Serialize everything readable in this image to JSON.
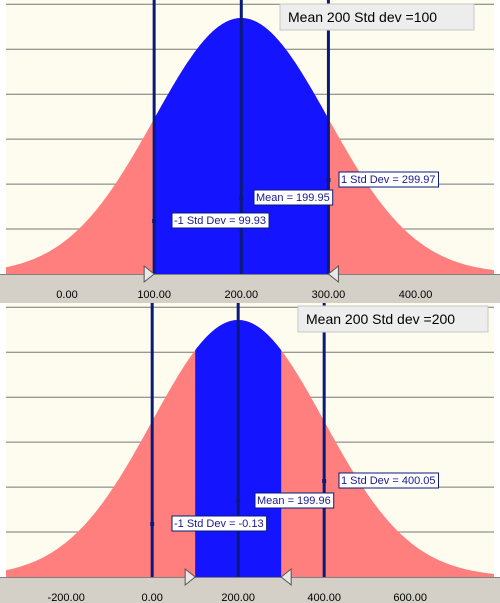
{
  "colors": {
    "plot_bg": "#fdfcef",
    "axis_strip": "#d4d0c8",
    "outer_fill": "#ff7f7f",
    "inner_fill": "#1414ff",
    "marker_line": "#0a1a7a",
    "grid": "#777777",
    "label_text": "#1a1a8c"
  },
  "chart_data": [
    {
      "type": "area",
      "title": "Mean 200 Std dev =100",
      "mean": 200,
      "std_dev": 100,
      "xlim": [
        -70,
        490
      ],
      "x_ticks": [
        "0.00",
        "100.00",
        "200.00",
        "300.00",
        "400.00"
      ],
      "x_tick_values": [
        0,
        100,
        200,
        300,
        400
      ],
      "shaded_range": [
        100,
        300
      ],
      "markers": [
        {
          "x": 100,
          "label": "-1 Std Dev = 99.93"
        },
        {
          "x": 200,
          "label": "Mean = 199.95"
        },
        {
          "x": 300,
          "label": "1 Std Dev = 299.97"
        }
      ],
      "range_handles": [
        100,
        300
      ],
      "grid_lines": 6
    },
    {
      "type": "area",
      "title": "Mean 200 Std dev =200",
      "mean": 200,
      "std_dev": 200,
      "xlim": [
        -340,
        795
      ],
      "x_ticks": [
        "-200.00",
        "0.00",
        "200.00",
        "400.00",
        "600.00"
      ],
      "x_tick_values": [
        -200,
        0,
        200,
        400,
        600
      ],
      "shaded_range": [
        100,
        300
      ],
      "markers": [
        {
          "x": 0,
          "label": "-1 Std Dev = -0.13"
        },
        {
          "x": 200,
          "label": "Mean = 199.96"
        },
        {
          "x": 400,
          "label": "1 Std Dev = 400.05"
        }
      ],
      "range_handles": [
        100,
        300
      ],
      "grid_lines": 6
    }
  ]
}
